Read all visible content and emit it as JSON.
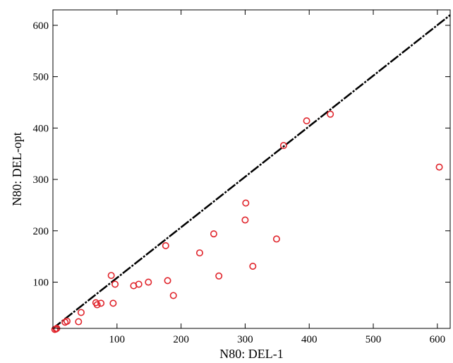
{
  "chart_data": {
    "type": "scatter",
    "title": "",
    "xlabel": "N80: DEL-1",
    "ylabel": "N80: DEL-opt",
    "xlim": [
      0,
      620
    ],
    "ylim": [
      10,
      630
    ],
    "xticks": [
      100,
      200,
      300,
      400,
      500,
      600
    ],
    "yticks": [
      100,
      200,
      300,
      400,
      500,
      600
    ],
    "grid": false,
    "marker_color": "#e0242b",
    "reference_line": {
      "style": "dashed",
      "color": "#000000",
      "x": [
        0,
        620
      ],
      "y": [
        10,
        620
      ]
    },
    "points": [
      {
        "x": 3,
        "y": 8
      },
      {
        "x": 5,
        "y": 9
      },
      {
        "x": 6,
        "y": 10
      },
      {
        "x": 19,
        "y": 22
      },
      {
        "x": 22,
        "y": 24
      },
      {
        "x": 40,
        "y": 23
      },
      {
        "x": 44,
        "y": 41
      },
      {
        "x": 67,
        "y": 60
      },
      {
        "x": 69,
        "y": 56
      },
      {
        "x": 75,
        "y": 59
      },
      {
        "x": 91,
        "y": 113
      },
      {
        "x": 94,
        "y": 59
      },
      {
        "x": 97,
        "y": 96
      },
      {
        "x": 126,
        "y": 93
      },
      {
        "x": 134,
        "y": 96
      },
      {
        "x": 149,
        "y": 100
      },
      {
        "x": 176,
        "y": 171
      },
      {
        "x": 179,
        "y": 103
      },
      {
        "x": 188,
        "y": 74
      },
      {
        "x": 229,
        "y": 157
      },
      {
        "x": 251,
        "y": 194
      },
      {
        "x": 259,
        "y": 112
      },
      {
        "x": 300,
        "y": 221
      },
      {
        "x": 301,
        "y": 254
      },
      {
        "x": 312,
        "y": 131
      },
      {
        "x": 349,
        "y": 184
      },
      {
        "x": 360,
        "y": 366
      },
      {
        "x": 396,
        "y": 414
      },
      {
        "x": 433,
        "y": 427
      },
      {
        "x": 603,
        "y": 324
      }
    ]
  }
}
